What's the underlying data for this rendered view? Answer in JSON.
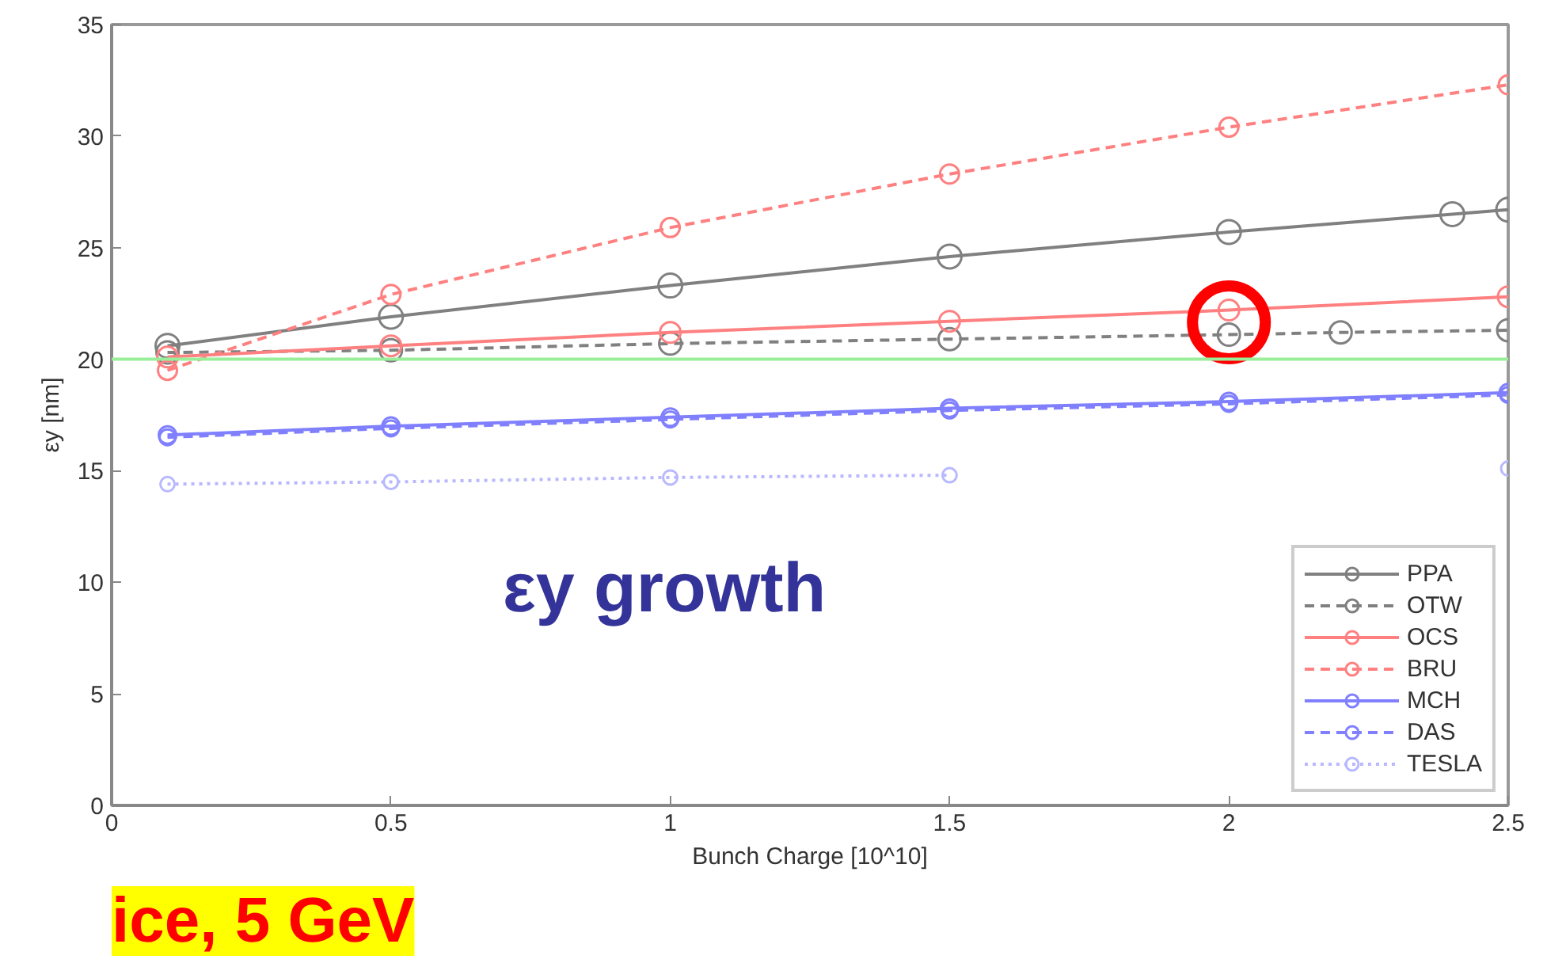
{
  "chart_data": {
    "type": "line",
    "xlabel": "Bunch Charge [10^10]",
    "ylabel": "εy [nm]",
    "annotations": [
      "εy growth",
      "ice, 5 GeV"
    ],
    "xlim": [
      0,
      2.5
    ],
    "ylim": [
      0,
      35
    ],
    "xticks": [
      0,
      0.5,
      1,
      1.5,
      2,
      2.5
    ],
    "yticks": [
      0,
      5,
      10,
      15,
      20,
      25,
      30,
      35
    ],
    "grid": false,
    "legend": "bottom right",
    "marker": "circle",
    "ref_lines": [
      {
        "axis": "y",
        "value": 20,
        "color": "#99ee99"
      }
    ],
    "series": [
      {
        "name": "PPA",
        "color": "#808080",
        "line_style": "solid",
        "x": [
          0.1,
          0.5,
          1,
          1.5,
          2,
          2.4,
          2.5
        ],
        "values": [
          20.6,
          21.9,
          23.3,
          24.6,
          25.7,
          26.5,
          26.7
        ]
      },
      {
        "name": "OTW",
        "color": "#808080",
        "line_style": "dashed",
        "x": [
          0.1,
          0.5,
          1,
          1.5,
          2,
          2.2,
          2.5
        ],
        "values": [
          20.3,
          20.4,
          20.7,
          20.9,
          21.1,
          21.2,
          21.3
        ]
      },
      {
        "name": "OCS",
        "color": "#ff8080",
        "line_style": "solid",
        "x": [
          0.1,
          0.5,
          1,
          1.5,
          2,
          2.5
        ],
        "values": [
          20.1,
          20.6,
          21.2,
          21.7,
          22.2,
          22.8
        ]
      },
      {
        "name": "BRU",
        "color": "#ff8080",
        "line_style": "dashed",
        "x": [
          0.1,
          0.5,
          1,
          1.5,
          2,
          2.5
        ],
        "values": [
          19.5,
          22.9,
          25.9,
          28.3,
          30.4,
          32.3
        ]
      },
      {
        "name": "MCH",
        "color": "#8080ff",
        "line_style": "solid",
        "x": [
          0.1,
          0.5,
          1,
          1.5,
          2,
          2.5
        ],
        "values": [
          16.6,
          17.0,
          17.4,
          17.8,
          18.1,
          18.5
        ]
      },
      {
        "name": "DAS",
        "color": "#8080ff",
        "line_style": "dashed",
        "x": [
          0.1,
          0.5,
          1,
          1.5,
          2,
          2.5
        ],
        "values": [
          16.5,
          16.9,
          17.3,
          17.7,
          18.0,
          18.4
        ]
      },
      {
        "name": "TESLA",
        "color": "#b8b8ff",
        "line_style": "dotted",
        "x": [
          0.1,
          0.5,
          1,
          1.5,
          2,
          2.5
        ],
        "values": [
          14.4,
          14.5,
          14.7,
          14.8,
          null,
          15.1
        ]
      }
    ]
  }
}
